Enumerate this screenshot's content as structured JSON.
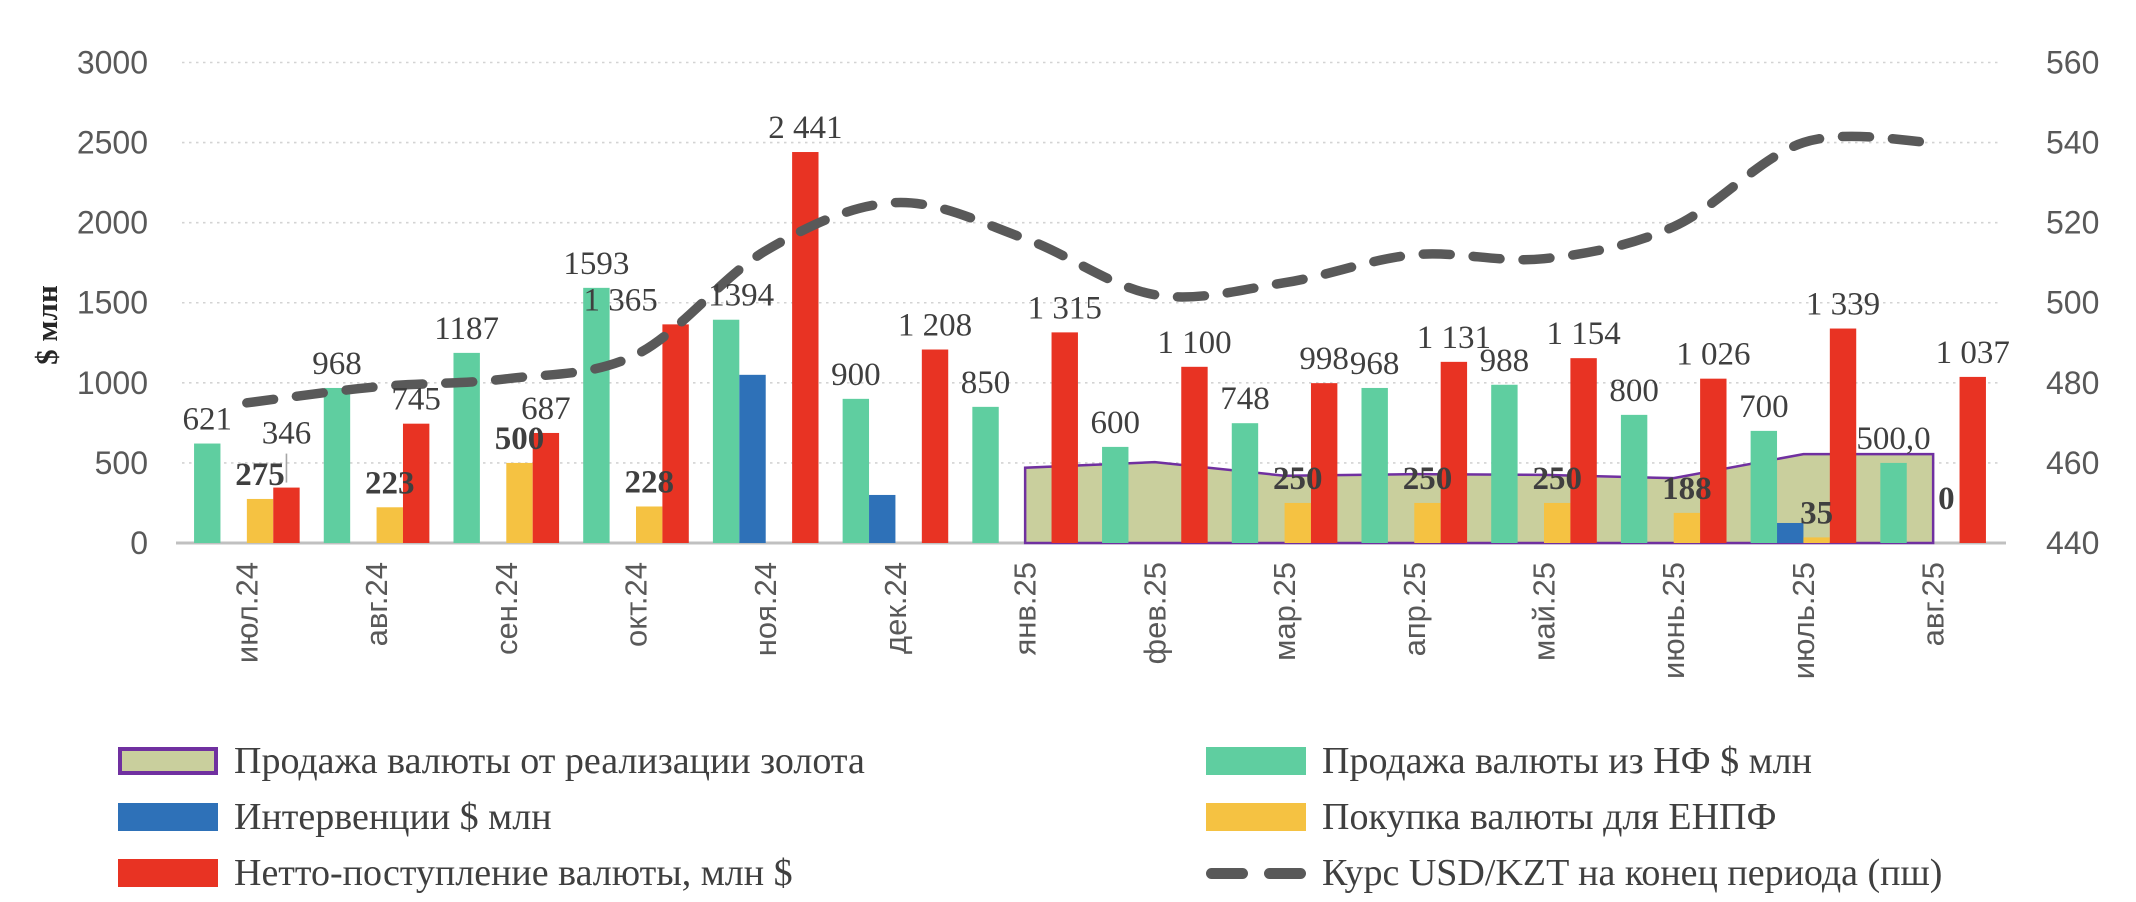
{
  "chart_data": {
    "type": "combo",
    "title": "",
    "categories": [
      "июл.24",
      "авг.24",
      "сен.24",
      "окт.24",
      "ноя.24",
      "дек.24",
      "янв.25",
      "фев.25",
      "мар.25",
      "апр.25",
      "май.25",
      "июнь.25",
      "июль.25",
      "авг.25"
    ],
    "axes": {
      "left": {
        "label": "$ млн",
        "min": 0,
        "max": 3000,
        "ticks": [
          0,
          500,
          1000,
          1500,
          2000,
          2500,
          3000
        ],
        "grid": "dotted"
      },
      "right": {
        "label": "",
        "min": 440,
        "max": 560,
        "ticks": [
          440,
          460,
          480,
          500,
          520,
          540,
          560
        ]
      }
    },
    "series": [
      {
        "id": "gold_area",
        "name": "Продажа валюты от реализации золота",
        "type": "area",
        "axis": "left",
        "fill": "#C9CF9D",
        "stroke": "#7030A0",
        "values": [
          null,
          null,
          null,
          null,
          null,
          null,
          470,
          505,
          420,
          430,
          425,
          405,
          555,
          555
        ],
        "labels": [
          null,
          null,
          null,
          null,
          null,
          null,
          null,
          null,
          null,
          null,
          null,
          null,
          null,
          null
        ]
      },
      {
        "id": "nf_sales",
        "name": "Продажа валюты из НФ $ млн",
        "type": "bar",
        "slot": 0,
        "axis": "left",
        "color": "#5FCEA0",
        "values": [
          621,
          968,
          1187,
          1593,
          1394,
          900,
          850,
          600,
          748,
          968,
          988,
          800,
          700,
          500
        ],
        "labels": [
          "621",
          "968",
          "1187",
          "1593",
          "1394",
          "900",
          "850",
          "600",
          "748",
          "968",
          "988",
          "800",
          "700",
          "500,0"
        ]
      },
      {
        "id": "interventions",
        "name": "Интервенции $ млн",
        "type": "bar",
        "slot": 1,
        "axis": "left",
        "color": "#2E71B8",
        "values": [
          null,
          null,
          null,
          null,
          1050,
          300,
          null,
          null,
          null,
          null,
          null,
          null,
          125,
          null
        ],
        "labels": [
          null,
          null,
          null,
          null,
          null,
          null,
          null,
          null,
          null,
          null,
          null,
          null,
          null,
          null
        ]
      },
      {
        "id": "enpf",
        "name": "Покупка валюты для ЕНПФ",
        "type": "bar",
        "slot": 2,
        "axis": "left",
        "color": "#F5C242",
        "labels_bold": true,
        "values": [
          275,
          223,
          500,
          228,
          null,
          null,
          null,
          null,
          250,
          250,
          250,
          188,
          35,
          0
        ],
        "labels": [
          "275",
          "223",
          "500",
          "228",
          null,
          null,
          null,
          null,
          "250",
          "250",
          "250",
          "188",
          "35",
          "0"
        ]
      },
      {
        "id": "net_inflow",
        "name": "Нетто-поступление валюты, млн $",
        "type": "bar",
        "slot": 3,
        "axis": "left",
        "color": "#E83323",
        "values": [
          346,
          745,
          687,
          1365,
          2441,
          1208,
          1315,
          1100,
          998,
          1131,
          1154,
          1026,
          1339,
          1037
        ],
        "labels": [
          "346",
          "745",
          "687",
          "1 365",
          "2 441",
          "1 208",
          "1 315",
          "1 100",
          "998",
          "1 131",
          "1 154",
          "1 026",
          "1 339",
          "1 037"
        ]
      },
      {
        "id": "usdkzt",
        "name": "Курс USD/KZT на конец периода (пш)",
        "type": "line",
        "axis": "right",
        "color": "#595959",
        "dashed": true,
        "values": [
          475,
          479,
          481,
          487,
          513,
          525,
          516,
          502,
          505,
          512,
          511,
          519,
          540,
          540
        ]
      }
    ],
    "label_adjust": {
      "net_inflow": {
        "0": {
          "dy": -30,
          "leader": true
        },
        "3": {
          "dx": -55
        }
      },
      "nf_sales": {
        "4": {
          "dx": 15
        }
      },
      "enpf": {
        "13": {
          "dy": -20
        }
      }
    },
    "legend_position": "bottom",
    "colors": {
      "grid": "#D3D3D3",
      "axis_line": "#C0C0C0",
      "tick_text": "#595959",
      "data_label_text": "#3F3F3F",
      "leader_line": "#A6A6A6"
    }
  }
}
